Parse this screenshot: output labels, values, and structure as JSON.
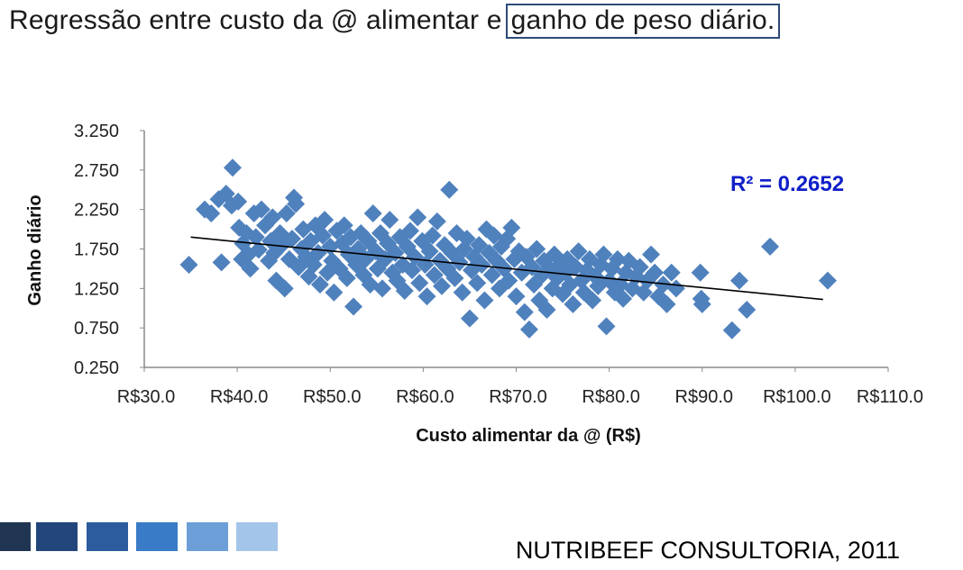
{
  "title": {
    "prefix": "Regressão entre custo da @ alimentar e",
    "boxed": "ganho de peso diário."
  },
  "footer": "NUTRIBEEF CONSULTORIA, 2011",
  "colors": {
    "points": "#4f81bd",
    "trendline": "#000000",
    "r2_text": "#1020c8",
    "swatches": [
      "#1f3552",
      "#23467a",
      "#2c5c9e",
      "#3a7bc8",
      "#6c9fd8",
      "#a4c5ea"
    ]
  },
  "chart_data": {
    "type": "scatter",
    "xlabel": "Custo alimentar da @ (R$)",
    "ylabel": "Ganho diário",
    "xlim": [
      30,
      110
    ],
    "ylim": [
      0.25,
      3.25
    ],
    "x_ticks": [
      "R$30.0",
      "R$40.0",
      "R$50.0",
      "R$60.0",
      "R$70.0",
      "R$80.0",
      "R$90.0",
      "R$100.0",
      "R$110.0"
    ],
    "y_ticks": [
      "3.250",
      "2.750",
      "2.250",
      "1.750",
      "1.250",
      "0.750",
      "0.250"
    ],
    "grid": false,
    "annotation": {
      "text": "R² = 0.2652",
      "r2": 0.2652
    },
    "trendline": {
      "x": [
        35,
        103
      ],
      "y": [
        1.9,
        1.11
      ]
    },
    "points": [
      [
        34.8,
        1.55
      ],
      [
        36.5,
        2.25
      ],
      [
        37.2,
        2.2
      ],
      [
        38.0,
        2.38
      ],
      [
        38.3,
        1.58
      ],
      [
        38.8,
        2.45
      ],
      [
        39.4,
        2.3
      ],
      [
        39.5,
        2.78
      ],
      [
        40.1,
        2.35
      ],
      [
        40.2,
        2.02
      ],
      [
        40.5,
        1.62
      ],
      [
        40.6,
        1.82
      ],
      [
        41.0,
        1.95
      ],
      [
        41.2,
        1.68
      ],
      [
        41.4,
        1.5
      ],
      [
        41.8,
        2.2
      ],
      [
        42.0,
        1.9
      ],
      [
        42.3,
        1.74
      ],
      [
        42.6,
        2.25
      ],
      [
        43.0,
        2.05
      ],
      [
        43.4,
        1.6
      ],
      [
        43.6,
        1.85
      ],
      [
        43.8,
        2.15
      ],
      [
        44.0,
        1.7
      ],
      [
        44.2,
        1.35
      ],
      [
        44.6,
        1.95
      ],
      [
        44.8,
        1.8
      ],
      [
        45.1,
        1.25
      ],
      [
        45.3,
        2.2
      ],
      [
        45.6,
        1.62
      ],
      [
        45.9,
        1.88
      ],
      [
        46.1,
        2.4
      ],
      [
        46.3,
        2.32
      ],
      [
        46.6,
        1.52
      ],
      [
        46.9,
        1.75
      ],
      [
        47.1,
        2.0
      ],
      [
        47.4,
        1.65
      ],
      [
        47.7,
        1.4
      ],
      [
        47.9,
        1.85
      ],
      [
        48.2,
        1.55
      ],
      [
        48.4,
        2.05
      ],
      [
        48.7,
        1.7
      ],
      [
        48.9,
        1.3
      ],
      [
        49.2,
        1.92
      ],
      [
        49.4,
        2.12
      ],
      [
        49.7,
        1.45
      ],
      [
        50.0,
        1.78
      ],
      [
        50.2,
        1.6
      ],
      [
        50.4,
        1.2
      ],
      [
        50.7,
        1.98
      ],
      [
        51.0,
        1.5
      ],
      [
        51.3,
        1.82
      ],
      [
        51.5,
        2.05
      ],
      [
        51.8,
        1.38
      ],
      [
        52.0,
        1.68
      ],
      [
        52.2,
        1.9
      ],
      [
        52.5,
        1.02
      ],
      [
        52.8,
        1.55
      ],
      [
        53.0,
        1.75
      ],
      [
        53.3,
        1.95
      ],
      [
        53.6,
        1.42
      ],
      [
        53.8,
        1.62
      ],
      [
        54.1,
        1.85
      ],
      [
        54.3,
        1.3
      ],
      [
        54.6,
        2.2
      ],
      [
        54.9,
        1.72
      ],
      [
        55.1,
        1.5
      ],
      [
        55.4,
        1.95
      ],
      [
        55.6,
        1.25
      ],
      [
        55.9,
        1.62
      ],
      [
        56.2,
        1.82
      ],
      [
        56.4,
        2.12
      ],
      [
        56.7,
        1.45
      ],
      [
        57.0,
        1.7
      ],
      [
        57.2,
        1.35
      ],
      [
        57.5,
        1.9
      ],
      [
        57.8,
        1.55
      ],
      [
        58.0,
        1.22
      ],
      [
        58.3,
        1.78
      ],
      [
        58.6,
        1.98
      ],
      [
        58.8,
        1.48
      ],
      [
        59.1,
        1.65
      ],
      [
        59.4,
        2.15
      ],
      [
        59.6,
        1.32
      ],
      [
        59.9,
        1.85
      ],
      [
        60.2,
        1.55
      ],
      [
        60.4,
        1.15
      ],
      [
        60.7,
        1.72
      ],
      [
        61.0,
        1.92
      ],
      [
        61.2,
        1.42
      ],
      [
        61.5,
        2.1
      ],
      [
        61.8,
        1.6
      ],
      [
        62.0,
        1.28
      ],
      [
        62.3,
        1.8
      ],
      [
        62.6,
        1.5
      ],
      [
        62.8,
        2.5
      ],
      [
        63.1,
        1.7
      ],
      [
        63.4,
        1.38
      ],
      [
        63.6,
        1.95
      ],
      [
        63.9,
        1.58
      ],
      [
        64.2,
        1.2
      ],
      [
        64.4,
        1.75
      ],
      [
        64.7,
        1.88
      ],
      [
        65.0,
        0.87
      ],
      [
        65.2,
        1.48
      ],
      [
        65.5,
        1.65
      ],
      [
        65.8,
        1.32
      ],
      [
        66.0,
        1.8
      ],
      [
        66.3,
        1.55
      ],
      [
        66.6,
        1.1
      ],
      [
        66.8,
        2.0
      ],
      [
        67.1,
        1.7
      ],
      [
        67.4,
        1.42
      ],
      [
        67.6,
        1.92
      ],
      [
        67.9,
        1.6
      ],
      [
        68.2,
        1.25
      ],
      [
        68.4,
        1.78
      ],
      [
        68.7,
        1.5
      ],
      [
        69.0,
        1.88
      ],
      [
        69.2,
        1.35
      ],
      [
        69.5,
        2.02
      ],
      [
        69.8,
        1.62
      ],
      [
        70.0,
        1.15
      ],
      [
        70.3,
        1.72
      ],
      [
        70.6,
        1.45
      ],
      [
        70.9,
        0.95
      ],
      [
        71.1,
        1.65
      ],
      [
        71.4,
        0.73
      ],
      [
        71.7,
        1.52
      ],
      [
        71.9,
        1.3
      ],
      [
        72.2,
        1.75
      ],
      [
        72.5,
        1.1
      ],
      [
        72.8,
        1.42
      ],
      [
        73.0,
        1.6
      ],
      [
        73.3,
        0.98
      ],
      [
        73.6,
        1.5
      ],
      [
        73.9,
        1.25
      ],
      [
        74.1,
        1.68
      ],
      [
        74.4,
        1.38
      ],
      [
        74.7,
        1.55
      ],
      [
        75.0,
        1.18
      ],
      [
        75.3,
        1.45
      ],
      [
        75.5,
        1.62
      ],
      [
        75.8,
        1.3
      ],
      [
        76.1,
        1.05
      ],
      [
        76.4,
        1.52
      ],
      [
        76.7,
        1.72
      ],
      [
        77.0,
        1.35
      ],
      [
        77.3,
        1.2
      ],
      [
        77.6,
        1.48
      ],
      [
        77.9,
        1.62
      ],
      [
        78.2,
        1.1
      ],
      [
        78.5,
        1.4
      ],
      [
        78.8,
        1.28
      ],
      [
        79.1,
        1.55
      ],
      [
        79.4,
        1.68
      ],
      [
        79.7,
        0.77
      ],
      [
        80.0,
        1.35
      ],
      [
        80.3,
        1.5
      ],
      [
        80.6,
        1.2
      ],
      [
        80.9,
        1.62
      ],
      [
        81.2,
        1.3
      ],
      [
        81.5,
        1.12
      ],
      [
        81.8,
        1.45
      ],
      [
        82.1,
        1.6
      ],
      [
        82.5,
        1.25
      ],
      [
        82.9,
        1.4
      ],
      [
        83.3,
        1.52
      ],
      [
        83.7,
        1.2
      ],
      [
        84.1,
        1.35
      ],
      [
        84.5,
        1.68
      ],
      [
        84.9,
        1.45
      ],
      [
        85.3,
        1.15
      ],
      [
        85.8,
        1.3
      ],
      [
        86.2,
        1.05
      ],
      [
        86.7,
        1.45
      ],
      [
        87.2,
        1.25
      ],
      [
        89.8,
        1.45
      ],
      [
        89.9,
        1.12
      ],
      [
        90.0,
        1.05
      ],
      [
        93.2,
        0.72
      ],
      [
        94.0,
        1.35
      ],
      [
        94.8,
        0.98
      ],
      [
        97.3,
        1.78
      ],
      [
        103.5,
        1.35
      ]
    ]
  }
}
